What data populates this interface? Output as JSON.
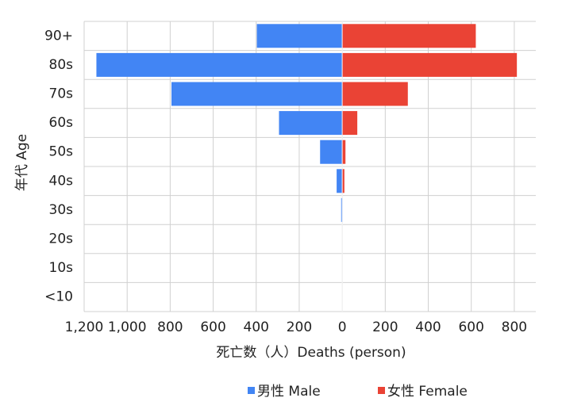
{
  "chart_data": {
    "type": "bar",
    "orientation": "horizontal",
    "xlabel": "死亡数（人）Deaths (person)",
    "ylabel": "年代 Age",
    "categories": [
      "90+",
      "80s",
      "70s",
      "60s",
      "50s",
      "40s",
      "30s",
      "20s",
      "10s",
      "<10"
    ],
    "series": [
      {
        "name": "男性 Male",
        "color": "#4285f4",
        "values": [
          -397,
          -1143,
          -794,
          -294,
          -103,
          -26,
          -5,
          0,
          0,
          0
        ]
      },
      {
        "name": "女性 Female",
        "color": "#ea4335",
        "values": [
          621,
          812,
          305,
          70,
          15,
          10,
          0,
          0,
          0,
          0
        ]
      }
    ],
    "xlim": [
      -1200,
      900
    ],
    "xticks": [
      {
        "value": -1200,
        "label": "1,200"
      },
      {
        "value": -1000,
        "label": "1,000"
      },
      {
        "value": -800,
        "label": "800"
      },
      {
        "value": -600,
        "label": "600"
      },
      {
        "value": -400,
        "label": "400"
      },
      {
        "value": -200,
        "label": "200"
      },
      0,
      200,
      400,
      600,
      800
    ],
    "grid": true,
    "legend": "bottom"
  }
}
